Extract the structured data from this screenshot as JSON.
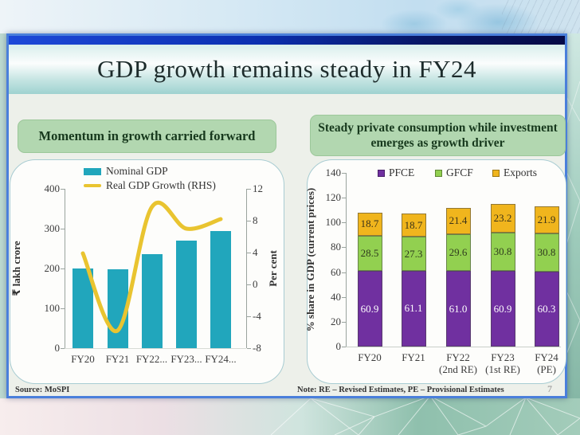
{
  "title": "GDP growth remains steady in FY24",
  "page": {
    "number": "7"
  },
  "left_panel": {
    "header": "Momentum in growth carried forward",
    "source": "Source: MoSPI"
  },
  "right_panel": {
    "header": "Steady private consumption while investment emerges as growth driver",
    "note": "Note: RE – Revised Estimates, PE – Provisional Estimates"
  },
  "theme": {
    "slide_border": "#4a7fdb",
    "top_bar_gradient": [
      "#1d49d8",
      "#050a46"
    ],
    "title_band_teal": "#9fd2d0",
    "header_box_bg": "#b2d7b0",
    "header_box_text": "#17391d",
    "card_border": "#a8ccd2"
  },
  "chart_data": [
    {
      "type": "bar",
      "subtype": "bar+line-dual-axis",
      "categories": [
        "FY20",
        "FY21",
        "FY22...",
        "FY23...",
        "FY24..."
      ],
      "series": [
        {
          "name": "Nominal GDP",
          "type": "bar",
          "axis": "left",
          "color": "#21a6bc",
          "values": [
            201,
            198,
            236,
            271,
            295
          ]
        },
        {
          "name": "Real GDP Growth (RHS)",
          "type": "line",
          "axis": "right",
          "color": "#e9c430",
          "values": [
            3.9,
            -5.8,
            9.7,
            7.0,
            8.2
          ]
        }
      ],
      "left_axis": {
        "label": "₹ lakh crore",
        "ticks": [
          0,
          100,
          200,
          300,
          400
        ],
        "range": [
          0,
          400
        ]
      },
      "right_axis": {
        "label": "Per cent",
        "ticks": [
          -8,
          -4,
          0,
          4,
          8,
          12
        ],
        "range": [
          -8,
          12
        ]
      },
      "legend_position": "top-left-inside",
      "grid": false
    },
    {
      "type": "bar",
      "subtype": "stacked-bar",
      "categories": [
        [
          "FY20"
        ],
        [
          "FY21"
        ],
        [
          "FY22",
          "(2nd RE)"
        ],
        [
          "FY23",
          "(1st RE)"
        ],
        [
          "FY24",
          "(PE)"
        ]
      ],
      "series": [
        {
          "name": "PFCE",
          "color": "#7030a0",
          "label_color": "#ffffff",
          "values": [
            60.9,
            61.1,
            61.0,
            60.9,
            60.3
          ]
        },
        {
          "name": "GFCF",
          "color": "#92d050",
          "label_color": "#2f3b1e",
          "values": [
            28.5,
            27.3,
            29.6,
            30.8,
            30.8
          ]
        },
        {
          "name": "Exports",
          "color": "#f0b51d",
          "label_color": "#3c3318",
          "values": [
            18.7,
            18.7,
            21.4,
            23.2,
            21.9
          ]
        }
      ],
      "y_axis": {
        "label": "% share in GDP (current prices)",
        "ticks": [
          0,
          20,
          40,
          60,
          80,
          100,
          120,
          140
        ],
        "range": [
          0,
          140
        ]
      },
      "legend_position": "top-inside",
      "grid": false
    }
  ]
}
